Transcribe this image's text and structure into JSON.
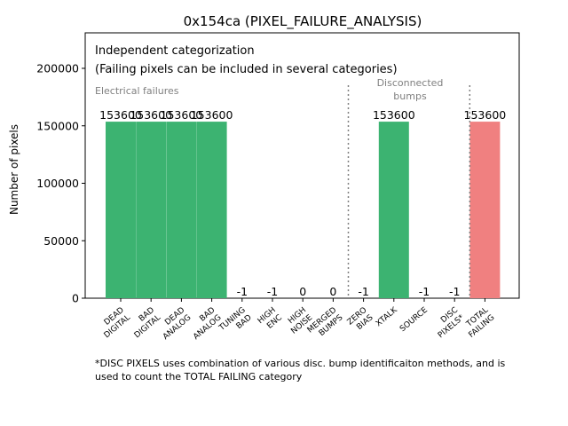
{
  "chart_data": {
    "type": "bar",
    "title": "0x154ca (PIXEL_FAILURE_ANALYSIS)",
    "xlabel": "",
    "ylabel": "Number of pixels",
    "ylim": [
      0,
      230000
    ],
    "yticks": [
      0,
      50000,
      100000,
      150000,
      200000
    ],
    "grid": false,
    "categories": [
      [
        "DEAD",
        "DIGITAL"
      ],
      [
        "BAD",
        "DIGITAL"
      ],
      [
        "DEAD",
        "ANALOG"
      ],
      [
        "BAD",
        "ANALOG"
      ],
      [
        "TUNING",
        "BAD"
      ],
      [
        "HIGH",
        "ENC"
      ],
      [
        "HIGH",
        "NOISE"
      ],
      [
        "MERGED",
        "BUMPS"
      ],
      [
        "ZERO",
        "BIAS"
      ],
      [
        "XTALK"
      ],
      [
        "SOURCE"
      ],
      [
        "DISC",
        "PIXELS*"
      ],
      [
        "TOTAL",
        "FAILING"
      ]
    ],
    "values": [
      153600,
      153600,
      153600,
      153600,
      -1,
      -1,
      0,
      0,
      -1,
      153600,
      -1,
      -1,
      153600
    ],
    "bar_colors": [
      "#3cb371",
      "#3cb371",
      "#3cb371",
      "#3cb371",
      "#3cb371",
      "#3cb371",
      "#3cb371",
      "#3cb371",
      "#3cb371",
      "#3cb371",
      "#3cb371",
      "#3cb371",
      "#f08080"
    ],
    "annotations": {
      "header_line1": "Independent categorization",
      "header_line2": "(Failing pixels can be included in several categories)",
      "group_electrical": "Electrical failures",
      "group_disconnected": [
        "Disconnected",
        "bumps"
      ]
    },
    "separators_after_category_index": [
      7,
      11
    ],
    "footnote": [
      "*DISC PIXELS uses combination of various disc. bump identificaiton methods, and is",
      "used to count the TOTAL FAILING category"
    ]
  }
}
